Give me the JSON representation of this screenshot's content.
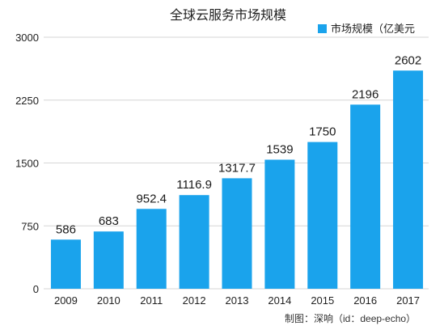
{
  "chart_data": {
    "type": "bar",
    "title": "全球云服务市场规模",
    "categories": [
      "2009",
      "2010",
      "2011",
      "2012",
      "2013",
      "2014",
      "2015",
      "2016",
      "2017"
    ],
    "series": [
      {
        "name": "市场规模（亿美元",
        "values": [
          586,
          683,
          952.4,
          1116.9,
          1317.7,
          1539,
          1750,
          2196,
          2602
        ],
        "labels": [
          "586",
          "683",
          "952.4",
          "1116.9",
          "1317.7",
          "1539",
          "1750",
          "2196",
          "2602"
        ],
        "color": "#1aa3ec"
      }
    ],
    "yticks": [
      "0",
      "750",
      "1500",
      "2250",
      "3000"
    ],
    "ylim": [
      0,
      3000
    ],
    "grid": true,
    "legend_position": "top-right"
  },
  "footer": {
    "credit": "制图：深响（id：deep-echo）"
  }
}
